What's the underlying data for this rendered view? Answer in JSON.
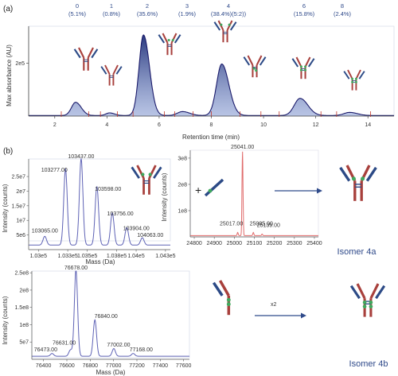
{
  "panel_a": {
    "letter": "(a)"
  },
  "panel_b": {
    "letter": "(b)"
  },
  "colors": {
    "heavy_chain": "#a8403c",
    "light_chain": "#2c4a86",
    "drug": "#3fa95e",
    "trace": "#1b1b6b",
    "fill": "#2b3f86",
    "spectrum": "#5e62b5",
    "zoom_spectrum": "#e06b6b"
  },
  "icons": {
    "antibody": "antibody-icon",
    "half_antibody": "half-antibody-icon",
    "light_chain": "light-chain-fragment-icon",
    "arrow": "arrow-right-icon"
  },
  "chart_data": [
    {
      "type": "line",
      "xlabel": "Retention time (min)",
      "ylabel": "Max absorbance (AU)",
      "xlim": [
        1,
        15
      ],
      "ylim": [
        0,
        340000.0
      ],
      "x_ticks": [
        "2",
        "4",
        "6",
        "8",
        "10",
        "12",
        "14"
      ],
      "y_ticks": [
        "2e5"
      ],
      "peaks": [
        {
          "label": "0",
          "pct": "(5.1%)",
          "rt": 2.8,
          "height": 50000.0
        },
        {
          "label": "1",
          "pct": "(0.8%)",
          "rt": 4.1,
          "height": 10000.0
        },
        {
          "label": "2",
          "pct": "(35.6%)",
          "rt": 5.4,
          "height": 305000.0
        },
        {
          "label": "3",
          "pct": "(1.9%)",
          "rt": 6.9,
          "height": 15000.0
        },
        {
          "label": "4",
          "pct": "(38.4%)(5:2))",
          "rt": 8.4,
          "height": 195000.0
        },
        {
          "label": "6",
          "pct": "(15.8%)",
          "rt": 11.4,
          "height": 65000.0
        },
        {
          "label": "8",
          "pct": "(2.4%)",
          "rt": 13.3,
          "height": 12000.0
        }
      ],
      "grid": false
    },
    {
      "type": "line",
      "xlabel": "Mass (Da)",
      "ylabel": "Intensity (counts)",
      "xlim": [
        102900,
        104350
      ],
      "ylim": [
        0,
        31000000.0
      ],
      "x_ticks": [
        "1.03e5",
        "1.033e5",
        "1.035e5",
        "1.038e5",
        "1.04e5",
        "1.043e5"
      ],
      "y_ticks": [
        "5e6",
        "1e7",
        "1.5e7",
        "2e7",
        "2.5e7"
      ],
      "peaks": [
        {
          "label": "103065.00",
          "mass": 103065,
          "intensity": 3000000.0
        },
        {
          "label": "103277.00",
          "mass": 103277,
          "intensity": 26000000.0
        },
        {
          "label": "103437.00",
          "mass": 103437,
          "intensity": 29500000.0
        },
        {
          "label": "103598.00",
          "mass": 103598,
          "intensity": 20000000.0
        },
        {
          "label": "103756.00",
          "mass": 103756,
          "intensity": 11000000.0
        },
        {
          "label": "103904.00",
          "mass": 103904,
          "intensity": 6000000.0
        },
        {
          "label": "104063.00",
          "mass": 104063,
          "intensity": 2500000.0
        }
      ]
    },
    {
      "type": "line",
      "xlabel": "",
      "ylabel": "Intensity (counts)",
      "xlim": [
        24780,
        25420
      ],
      "ylim": [
        0,
        330000000.0
      ],
      "x_ticks": [
        "24800",
        "24900",
        "25000",
        "25100",
        "25200",
        "25300",
        "25400"
      ],
      "y_ticks": [
        "1e8",
        "2e8",
        "3e8"
      ],
      "peaks": [
        {
          "label": "25017.00",
          "mass": 25017,
          "intensity": 12000000.0
        },
        {
          "label": "25041.00",
          "mass": 25041,
          "intensity": 320000000.0
        },
        {
          "label": "25095.00",
          "mass": 25095,
          "intensity": 12000000.0
        },
        {
          "label": "25139.00",
          "mass": 25139,
          "intensity": 6000000.0
        }
      ]
    },
    {
      "type": "line",
      "xlabel": "Mass (Da)",
      "ylabel": "Intensity (counts)",
      "xlim": [
        76300,
        77650
      ],
      "ylim": [
        0,
        255000000.0
      ],
      "x_ticks": [
        "76400",
        "76600",
        "76800",
        "77000",
        "77200",
        "77400",
        "77600"
      ],
      "y_ticks": [
        "5e7",
        "1e8",
        "1.5e8",
        "2e8",
        "2.5e8"
      ],
      "peaks": [
        {
          "label": "76473.00",
          "mass": 76473,
          "intensity": 8000000.0
        },
        {
          "label": "76631.00",
          "mass": 76631,
          "intensity": 18000000.0
        },
        {
          "label": "76678.00",
          "mass": 76678,
          "intensity": 250000000.0
        },
        {
          "label": "76840.00",
          "mass": 76840,
          "intensity": 105000000.0
        },
        {
          "label": "77002.00",
          "mass": 77002,
          "intensity": 22000000.0
        },
        {
          "label": "77168.00",
          "mass": 77168,
          "intensity": 8000000.0
        }
      ]
    }
  ],
  "schemes": {
    "plus": "+",
    "x2": "x2",
    "isomer_a": "Isomer 4a",
    "isomer_b": "Isomer 4b"
  }
}
